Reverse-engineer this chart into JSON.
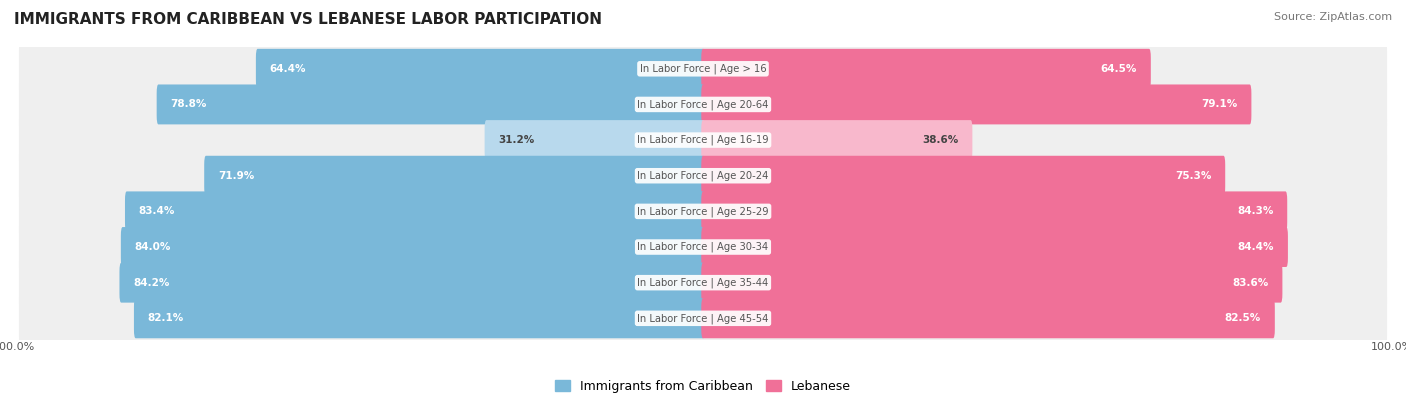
{
  "title": "IMMIGRANTS FROM CARIBBEAN VS LEBANESE LABOR PARTICIPATION",
  "source": "Source: ZipAtlas.com",
  "categories": [
    "In Labor Force | Age > 16",
    "In Labor Force | Age 20-64",
    "In Labor Force | Age 16-19",
    "In Labor Force | Age 20-24",
    "In Labor Force | Age 25-29",
    "In Labor Force | Age 30-34",
    "In Labor Force | Age 35-44",
    "In Labor Force | Age 45-54"
  ],
  "caribbean_values": [
    64.4,
    78.8,
    31.2,
    71.9,
    83.4,
    84.0,
    84.2,
    82.1
  ],
  "lebanese_values": [
    64.5,
    79.1,
    38.6,
    75.3,
    84.3,
    84.4,
    83.6,
    82.5
  ],
  "caribbean_color": "#7ab8d9",
  "caribbean_light_color": "#b8d9ed",
  "lebanese_color": "#f07098",
  "lebanese_light_color": "#f8b8cc",
  "row_bg_color": "#efefef",
  "label_color_dark": "#444444",
  "label_color_white": "#ffffff",
  "max_value": 100.0,
  "legend_caribbean": "Immigrants from Caribbean",
  "legend_lebanese": "Lebanese",
  "title_fontsize": 11,
  "label_fontsize": 7.5,
  "tick_fontsize": 8
}
